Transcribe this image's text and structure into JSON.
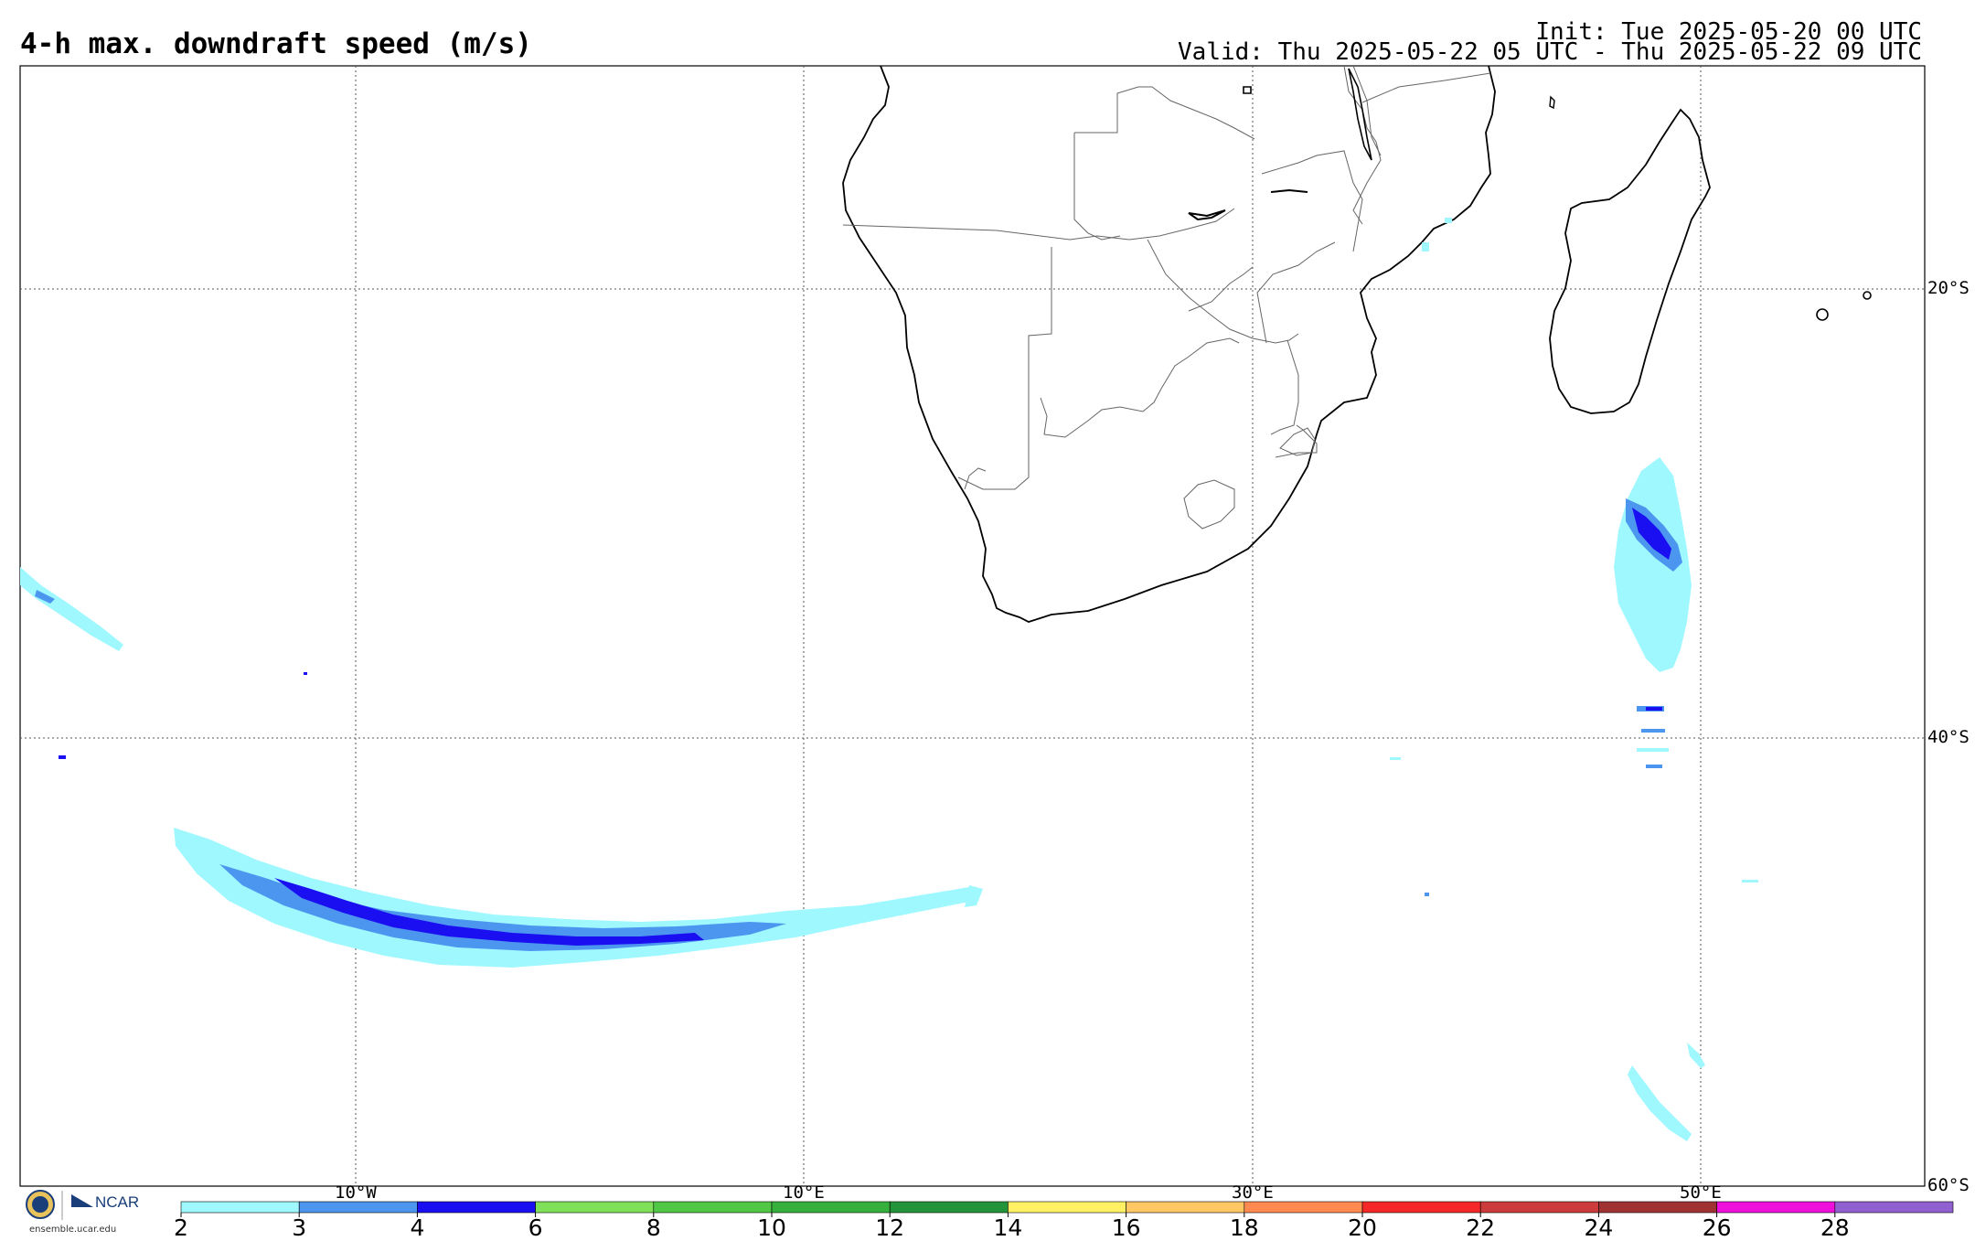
{
  "header": {
    "title": "4-h max. downdraft speed (m/s)",
    "init": "Init: Tue 2025-05-20 00 UTC",
    "valid": "Valid: Thu 2025-05-22 05 UTC - Thu 2025-05-22 09 UTC"
  },
  "axes": {
    "lat_labels": [
      "20°S",
      "40°S",
      "60°S"
    ],
    "lon_labels": [
      "10°W",
      "10°E",
      "30°E",
      "50°E"
    ]
  },
  "colorbar": {
    "ticks": [
      "2",
      "3",
      "4",
      "6",
      "8",
      "10",
      "12",
      "14",
      "16",
      "18",
      "20",
      "22",
      "24",
      "26",
      "28"
    ],
    "colors": [
      "#a0f8ff",
      "#4d96f0",
      "#1a0ff0",
      "#7fe05a",
      "#50c846",
      "#36b03c",
      "#23943a",
      "#fff064",
      "#ffc864",
      "#ff8a50",
      "#f52828",
      "#cd3c3c",
      "#a03232",
      "#f010dc",
      "#9060d0"
    ]
  },
  "logo": {
    "org": "NCAR",
    "site": "ensemble.ucar.edu"
  },
  "colors": {
    "light": "#a0f8ff",
    "mid": "#4d96f0",
    "dark": "#1a0ff0"
  }
}
